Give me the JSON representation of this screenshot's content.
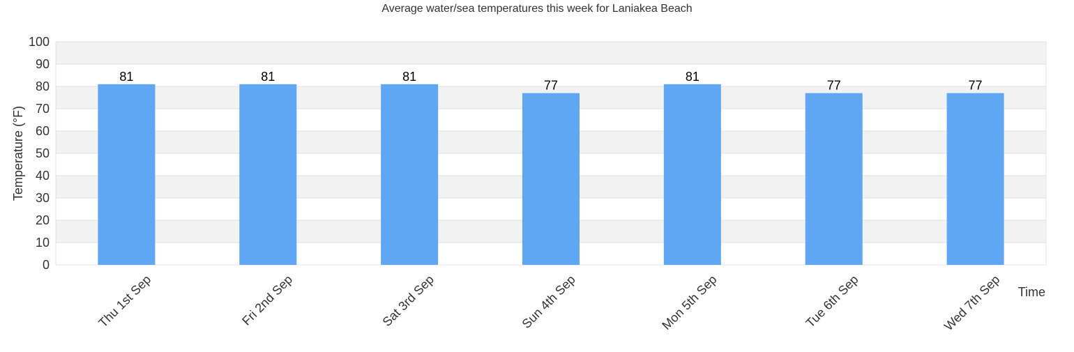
{
  "chart_data": {
    "type": "bar",
    "title": "Average water/sea temperatures this week for Laniakea Beach",
    "xlabel": "Time",
    "ylabel": "Temperature (°F)",
    "categories": [
      "Thu 1st Sep",
      "Fri 2nd Sep",
      "Sat 3rd Sep",
      "Sun 4th Sep",
      "Mon 5th Sep",
      "Tue 6th Sep",
      "Wed 7th Sep"
    ],
    "values": [
      81,
      81,
      81,
      77,
      81,
      77,
      77
    ],
    "ylim": [
      0,
      100
    ],
    "yticks": [
      0,
      10,
      20,
      30,
      40,
      50,
      60,
      70,
      80,
      90,
      100
    ],
    "grid": true,
    "legend": "none",
    "data_labels": true,
    "colors": {
      "bar": "#5fa7f5",
      "band": "#f2f2f2",
      "grid": "#e3e3e3",
      "text": "#333333"
    }
  }
}
